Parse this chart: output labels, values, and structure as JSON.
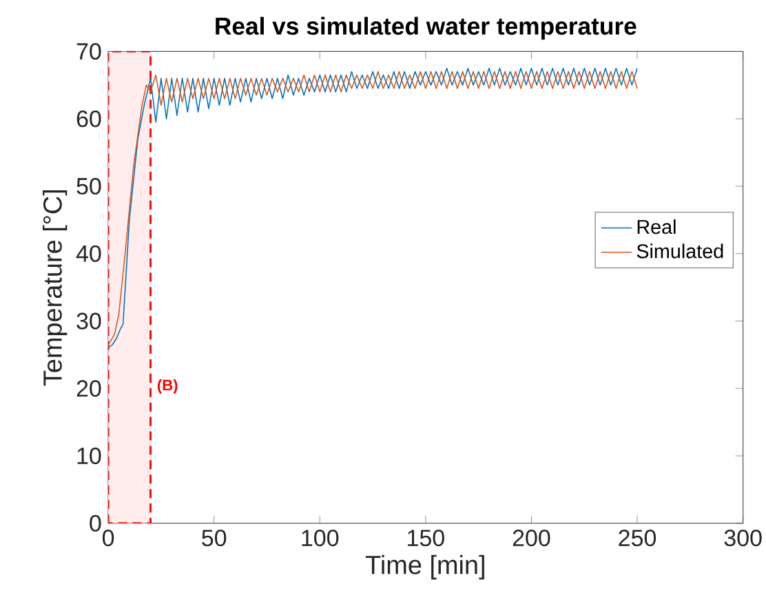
{
  "chart_data": {
    "type": "line",
    "title": "Real vs simulated water temperature",
    "xlabel": "Time [min]",
    "ylabel": "Temperature [°C]",
    "xlim": [
      0,
      300
    ],
    "ylim": [
      0,
      70
    ],
    "xticks": [
      0,
      50,
      100,
      150,
      200,
      250,
      300
    ],
    "yticks": [
      0,
      10,
      20,
      30,
      40,
      50,
      60,
      70
    ],
    "legend": "right",
    "bands": [
      {
        "axis": "x",
        "from": 0,
        "to": 20,
        "label": "(B)",
        "color": "#ff0000"
      }
    ],
    "series": [
      {
        "name": "Real",
        "color": "#0072bd",
        "x": [
          0,
          2,
          4,
          6,
          7,
          10,
          14,
          17,
          20,
          22.5,
          25,
          27.5,
          30,
          32.5,
          35,
          37.5,
          40,
          42.5,
          45,
          47.5,
          50,
          52.5,
          55,
          57.5,
          60,
          62.5,
          65,
          67.5,
          70,
          72.5,
          75,
          77.5,
          80,
          82.5,
          85,
          87.5,
          90,
          92.5,
          95,
          97.5,
          100,
          102.5,
          105,
          107.5,
          110,
          112.5,
          115,
          117.5,
          120,
          122.5,
          125,
          127.5,
          130,
          132.5,
          135,
          137.5,
          140,
          142.5,
          145,
          147.5,
          150,
          152.5,
          155,
          157.5,
          160,
          162.5,
          165,
          167.5,
          170,
          172.5,
          175,
          177.5,
          180,
          182.5,
          185,
          187.5,
          190,
          192.5,
          195,
          197.5,
          200,
          202.5,
          205,
          207.5,
          210,
          212.5,
          215,
          217.5,
          220,
          222.5,
          225,
          227.5,
          230,
          232.5,
          235,
          237.5,
          240,
          242.5,
          245,
          247.5,
          250
        ],
        "values": [
          26,
          26.5,
          27.5,
          29,
          29.5,
          45,
          57,
          62,
          66,
          59.5,
          66,
          60,
          66,
          60.5,
          66,
          61,
          66,
          61,
          66,
          61.5,
          66,
          62,
          66,
          62,
          66,
          62.5,
          66,
          62.5,
          66,
          63,
          66,
          63,
          66,
          63,
          66.5,
          63.5,
          66,
          63.5,
          66,
          64,
          66.5,
          64,
          66.5,
          64,
          66.5,
          64,
          67,
          64.5,
          66.5,
          64.5,
          67,
          64.5,
          66.5,
          64.5,
          67,
          64.5,
          67,
          64.5,
          67,
          65,
          67,
          65,
          67,
          65,
          67.5,
          65,
          67,
          65,
          67.5,
          65,
          67,
          65,
          67.5,
          65,
          67.5,
          65,
          67,
          65,
          67.5,
          65,
          67.5,
          65,
          67.5,
          65,
          67.5,
          65,
          67.5,
          65,
          67.5,
          65,
          67.5,
          65,
          67.5,
          65,
          67.5,
          65,
          67.5,
          65,
          67.5,
          65,
          67.5
        ]
      },
      {
        "name": "Simulated",
        "color": "#d95319",
        "x": [
          0,
          3,
          5,
          8,
          12,
          16,
          18,
          20,
          22.5,
          25,
          27.5,
          30,
          32.5,
          35,
          37.5,
          40,
          42.5,
          45,
          47.5,
          50,
          52.5,
          55,
          57.5,
          60,
          62.5,
          65,
          67.5,
          70,
          72.5,
          75,
          77.5,
          80,
          82.5,
          85,
          87.5,
          90,
          92.5,
          95,
          97.5,
          100,
          102.5,
          105,
          107.5,
          110,
          112.5,
          115,
          117.5,
          120,
          122.5,
          125,
          127.5,
          130,
          132.5,
          135,
          137.5,
          140,
          142.5,
          145,
          147.5,
          150,
          152.5,
          155,
          157.5,
          160,
          162.5,
          165,
          167.5,
          170,
          172.5,
          175,
          177.5,
          180,
          182.5,
          185,
          187.5,
          190,
          192.5,
          195,
          197.5,
          200,
          202.5,
          205,
          207.5,
          210,
          212.5,
          215,
          217.5,
          220,
          222.5,
          225,
          227.5,
          230,
          232.5,
          235,
          237.5,
          240,
          242.5,
          245,
          247.5,
          250
        ],
        "values": [
          26.5,
          28,
          31,
          40,
          53,
          62,
          65,
          64,
          66.5,
          62,
          66,
          62.5,
          66,
          62.5,
          66,
          63,
          66,
          63,
          66,
          63,
          66,
          63,
          66,
          63,
          66,
          63.5,
          66,
          63.5,
          66,
          63.5,
          66,
          64,
          66,
          64,
          66,
          64,
          66.5,
          64,
          66.5,
          64,
          66.5,
          64,
          66.5,
          64,
          66.5,
          64.5,
          66.5,
          64.5,
          66.5,
          64.5,
          67,
          64.5,
          66.5,
          64.5,
          67,
          64.5,
          66.5,
          64.5,
          67,
          64.5,
          67,
          64.5,
          67,
          64.5,
          67,
          64.5,
          67,
          64.5,
          67,
          64.5,
          67,
          64.5,
          67,
          64.5,
          67,
          64.5,
          67,
          64.5,
          67,
          64.5,
          67,
          64.5,
          67,
          64.5,
          67,
          64.5,
          67,
          64.5,
          67,
          64.5,
          67,
          64.5,
          67,
          64.5,
          67,
          64.5,
          67,
          64.5,
          67,
          64.5
        ]
      }
    ]
  }
}
